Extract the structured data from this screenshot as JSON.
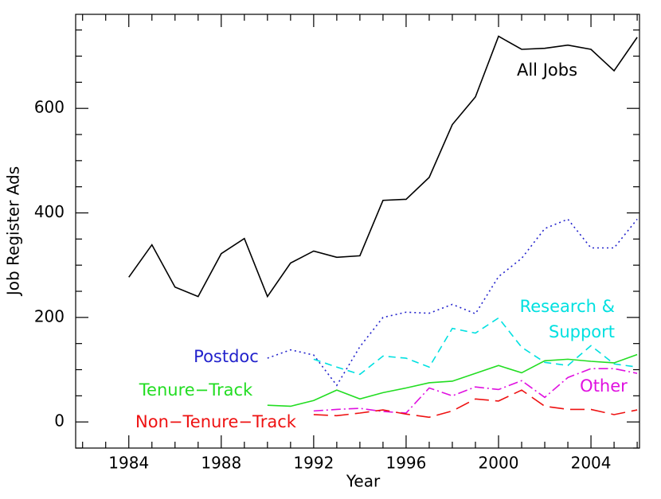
{
  "chart_data": {
    "type": "line",
    "xlabel": "Year",
    "ylabel": "Job Register Ads",
    "x": [
      1984,
      1985,
      1986,
      1987,
      1988,
      1989,
      1990,
      1991,
      1992,
      1993,
      1994,
      1995,
      1996,
      1997,
      1998,
      1999,
      2000,
      2001,
      2002,
      2003,
      2004,
      2005,
      2006
    ],
    "series": [
      {
        "name": "All Jobs",
        "color": "#000000",
        "dash": "none",
        "values": [
          277,
          339,
          258,
          240,
          322,
          351,
          240,
          304,
          327,
          315,
          318,
          424,
          426,
          468,
          569,
          622,
          738,
          713,
          715,
          721,
          713,
          672,
          736
        ]
      },
      {
        "name": "Postdoc",
        "color": "#2222cc",
        "dash": "2 4",
        "values": [
          null,
          null,
          null,
          null,
          null,
          null,
          122,
          138,
          128,
          70,
          144,
          200,
          210,
          208,
          225,
          207,
          278,
          313,
          370,
          388,
          333,
          333,
          388
        ]
      },
      {
        "name": "Research & Support",
        "color": "#00e0e0",
        "dash": "9 6",
        "values": [
          null,
          null,
          null,
          null,
          null,
          null,
          null,
          null,
          120,
          105,
          91,
          126,
          122,
          105,
          179,
          170,
          199,
          143,
          114,
          108,
          146,
          111,
          105
        ]
      },
      {
        "name": "Tenure−Track",
        "color": "#22dd22",
        "dash": "none",
        "values": [
          null,
          null,
          null,
          null,
          null,
          null,
          32,
          30,
          41,
          61,
          44,
          56,
          65,
          75,
          78,
          93,
          108,
          94,
          117,
          120,
          116,
          113,
          129
        ]
      },
      {
        "name": "Other",
        "color": "#e010e0",
        "dash": "12 4 2 4",
        "values": [
          null,
          null,
          null,
          null,
          null,
          null,
          null,
          null,
          21,
          24,
          26,
          20,
          17,
          65,
          50,
          67,
          62,
          79,
          47,
          85,
          102,
          102,
          93
        ]
      },
      {
        "name": "Non−Tenure−Track",
        "color": "#ee1111",
        "dash": "18 8",
        "values": [
          null,
          null,
          null,
          null,
          null,
          null,
          null,
          null,
          14,
          12,
          17,
          23,
          15,
          9,
          21,
          44,
          40,
          61,
          30,
          24,
          24,
          14,
          23
        ]
      }
    ],
    "xlim": [
      1981.7,
      2006.1
    ],
    "ylim": [
      -50,
      780
    ],
    "xticks": [
      1984,
      1988,
      1992,
      1996,
      2000,
      2004
    ],
    "xticks_minor": [
      1982,
      1983,
      1985,
      1986,
      1987,
      1989,
      1990,
      1991,
      1993,
      1994,
      1995,
      1997,
      1998,
      1999,
      2001,
      2002,
      2003,
      2005,
      2006
    ],
    "yticks": [
      0,
      200,
      400,
      600
    ],
    "yticks_minor": [
      -50,
      50,
      100,
      150,
      250,
      300,
      350,
      450,
      500,
      550,
      650,
      700,
      750
    ]
  }
}
